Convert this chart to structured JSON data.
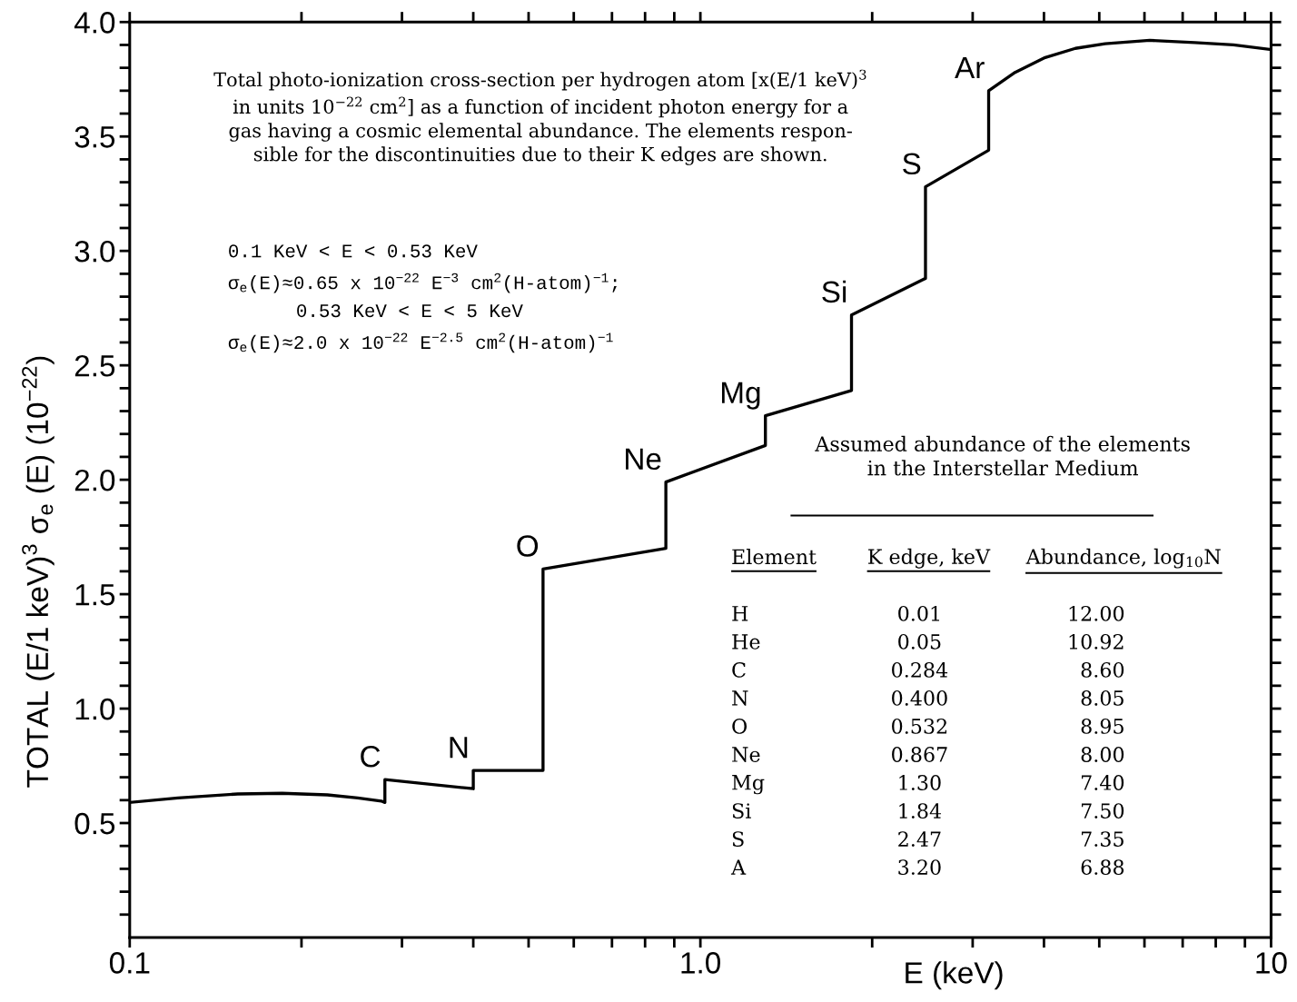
{
  "chart_data": {
    "type": "line",
    "xlabel": "E (keV)",
    "ylabel": "TOTAL (E/1 keV)$^{3}$ σ$_{e}$ (E) (10$^{−22}$)",
    "series": [
      {
        "color": "#000000",
        "x": [
          0.1,
          0.1215,
          0.1546,
          0.185,
          0.222,
          0.251,
          0.276,
          0.28,
          0.28,
          0.4,
          0.4,
          0.53,
          0.53,
          0.87,
          0.87,
          1.3,
          1.3,
          1.84,
          1.84,
          2.48,
          2.48,
          3.2,
          3.2,
          3.56,
          4.02,
          4.54,
          5.12,
          6.13,
          7.35,
          8.59,
          10
        ],
        "values": [
          0.59,
          0.61,
          0.627,
          0.63,
          0.623,
          0.61,
          0.596,
          0.59,
          0.69,
          0.65,
          0.73,
          0.73,
          1.61,
          1.7,
          1.99,
          2.15,
          2.28,
          2.39,
          2.72,
          2.88,
          3.28,
          3.44,
          3.7,
          3.78,
          3.845,
          3.885,
          3.905,
          3.92,
          3.91,
          3.9,
          3.88
        ]
      }
    ],
    "xlim": [
      0.1,
      10
    ],
    "ylim": [
      0,
      4.0
    ],
    "log": "x",
    "xticks": [
      0.1,
      {
        "value": 0.2,
        "label": null
      },
      {
        "value": 0.3,
        "label": null
      },
      {
        "value": 0.4,
        "label": null
      },
      {
        "value": 0.5,
        "label": null
      },
      {
        "value": 0.6,
        "label": null
      },
      {
        "value": 0.7,
        "label": null
      },
      {
        "value": 0.8,
        "label": null
      },
      {
        "value": 0.9,
        "label": null
      },
      {
        "value": 1,
        "label": "1.0"
      },
      {
        "value": 2,
        "label": null
      },
      {
        "value": 3,
        "label": null
      },
      {
        "value": 4,
        "label": null
      },
      {
        "value": 5,
        "label": null
      },
      {
        "value": 6,
        "label": null
      },
      {
        "value": 7,
        "label": null
      },
      {
        "value": 8,
        "label": null
      },
      {
        "value": 9,
        "label": null
      },
      10
    ],
    "yticks": [
      {
        "value": 0.1,
        "label": null
      },
      {
        "value": 0.2,
        "label": null
      },
      {
        "value": 0.3,
        "label": null
      },
      {
        "value": 0.4,
        "label": null
      },
      0.5,
      {
        "value": 0.6,
        "label": null
      },
      {
        "value": 0.7,
        "label": null
      },
      {
        "value": 0.8,
        "label": null
      },
      {
        "value": 0.9,
        "label": null
      },
      {
        "value": 1,
        "label": "1.0"
      },
      {
        "value": 1.1,
        "label": null
      },
      {
        "value": 1.2,
        "label": null
      },
      {
        "value": 1.3,
        "label": null
      },
      {
        "value": 1.4,
        "label": null
      },
      1.5,
      {
        "value": 1.6,
        "label": null
      },
      {
        "value": 1.7,
        "label": null
      },
      {
        "value": 1.8,
        "label": null
      },
      {
        "value": 1.9,
        "label": null
      },
      {
        "value": 2,
        "label": "2.0"
      },
      {
        "value": 2.1,
        "label": null
      },
      {
        "value": 2.2,
        "label": null
      },
      {
        "value": 2.3,
        "label": null
      },
      {
        "value": 2.4,
        "label": null
      },
      2.5,
      {
        "value": 2.6,
        "label": null
      },
      {
        "value": 2.7,
        "label": null
      },
      {
        "value": 2.8,
        "label": null
      },
      {
        "value": 2.9,
        "label": null
      },
      {
        "value": 3,
        "label": "3.0"
      },
      {
        "value": 3.1,
        "label": null
      },
      {
        "value": 3.2,
        "label": null
      },
      {
        "value": 3.3,
        "label": null
      },
      {
        "value": 3.4,
        "label": null
      },
      3.5,
      {
        "value": 3.6,
        "label": null
      },
      {
        "value": 3.7,
        "label": null
      },
      {
        "value": 3.8,
        "label": null
      },
      {
        "value": 3.9,
        "label": null
      },
      {
        "value": 4,
        "label": "4.0"
      }
    ],
    "grid": false,
    "marker": "none",
    "line_style": "solid",
    "annotations": [
      "Total photo-ionization cross-section per hydrogen atom [x(E/1 keV)$^{3}$\nin units 10$^{−22}$ cm$^{2}$] as a function of incident photon energy for a\ngas having a cosmic elemental abundance. The elements respon-\nsible for the discontinuities due to their K edges are shown.",
      "0.1 KeV < E < 0.53 KeV\nσ$_{e}$(E)≈0.65 x 10$^{−22}$ E$^{−3}$ cm$^{2}$(H-atom)$^{−1}$;\n      0.53 KeV < E < 5 KeV\nσ$_{e}$(E)≈2.0 x 10$^{−22}$ E$^{−2.5}$ cm$^{2}$(H-atom)$^{−1}$",
      "Assumed abundance of the elements\nin the Interstellar Medium",
      "Element\tK edge, keV\tAbundance, log$_{10}$N",
      "H\t0.01\t12.00",
      "He\t0.05\t10.92",
      "C\t0.284\t8.60",
      "N\t0.400\t8.05",
      "O\t0.532\t8.95",
      "Ne\t0.867\t8.00",
      "Mg\t1.30\t7.40",
      "Si\t1.84\t7.50",
      "S\t2.47\t7.35",
      "A\t3.20\t6.88",
      {
        "text": "C",
        "x": 0.28,
        "y": 0.69
      },
      {
        "text": "N",
        "x": 0.4,
        "y": 0.73
      },
      {
        "text": "O",
        "x": 0.53,
        "y": 1.61
      },
      {
        "text": "Ne",
        "x": 0.87,
        "y": 1.99
      },
      {
        "text": "Mg",
        "x": 1.3,
        "y": 2.28
      },
      {
        "text": "Si",
        "x": 1.84,
        "y": 2.72
      },
      {
        "text": "S",
        "x": 2.48,
        "y": 3.28
      },
      {
        "text": "Ar",
        "x": 3.2,
        "y": 3.7
      }
    ]
  }
}
